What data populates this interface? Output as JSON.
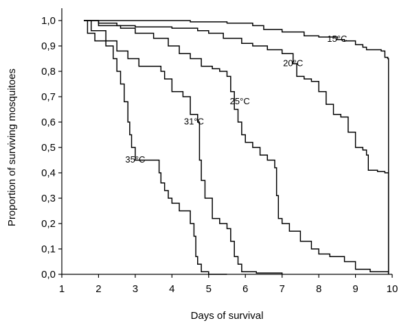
{
  "chart_data": {
    "type": "line",
    "step": true,
    "xlabel": "Days of survival",
    "ylabel": "Proportion of surviving mosquitoes",
    "xlim": [
      1,
      10
    ],
    "ylim": [
      0,
      1
    ],
    "x_ticks": [
      1,
      2,
      3,
      4,
      5,
      6,
      7,
      8,
      9,
      10
    ],
    "x_tick_labels": [
      "1",
      "2",
      "3",
      "4",
      "5",
      "6",
      "7",
      "8",
      "9",
      "10"
    ],
    "y_ticks": [
      0,
      0.1,
      0.2,
      0.3,
      0.4,
      0.5,
      0.6,
      0.7,
      0.8,
      0.9,
      1.0
    ],
    "y_tick_labels": [
      "0,0",
      "0,1",
      "0,2",
      "0,3",
      "0,4",
      "0,5",
      "0,6",
      "0,7",
      "0,8",
      "0,9",
      "1,0"
    ],
    "grid": false,
    "series": [
      {
        "name": "15°C",
        "color": "#000000",
        "points": [
          [
            1.6,
            1.0
          ],
          [
            3.0,
            1.0
          ],
          [
            4.5,
            0.995
          ],
          [
            5.5,
            0.99
          ],
          [
            6.2,
            0.98
          ],
          [
            6.5,
            0.965
          ],
          [
            7.0,
            0.955
          ],
          [
            7.6,
            0.94
          ],
          [
            8.0,
            0.935
          ],
          [
            8.5,
            0.925
          ],
          [
            8.7,
            0.92
          ],
          [
            9.0,
            0.905
          ],
          [
            9.2,
            0.895
          ],
          [
            9.3,
            0.885
          ],
          [
            9.6,
            0.885
          ],
          [
            9.7,
            0.88
          ],
          [
            9.8,
            0.855
          ],
          [
            9.88,
            0.85
          ],
          [
            9.9,
            0.0
          ]
        ]
      },
      {
        "name": "20°C",
        "color": "#000000",
        "points": [
          [
            1.6,
            1.0
          ],
          [
            2.0,
            0.99
          ],
          [
            2.5,
            0.98
          ],
          [
            3.0,
            0.975
          ],
          [
            4.0,
            0.97
          ],
          [
            4.7,
            0.96
          ],
          [
            5.0,
            0.95
          ],
          [
            5.4,
            0.93
          ],
          [
            5.9,
            0.91
          ],
          [
            6.2,
            0.9
          ],
          [
            6.6,
            0.885
          ],
          [
            7.0,
            0.87
          ],
          [
            7.3,
            0.83
          ],
          [
            7.4,
            0.78
          ],
          [
            7.6,
            0.77
          ],
          [
            7.8,
            0.76
          ],
          [
            8.0,
            0.72
          ],
          [
            8.2,
            0.67
          ],
          [
            8.4,
            0.63
          ],
          [
            8.6,
            0.62
          ],
          [
            8.8,
            0.56
          ],
          [
            9.0,
            0.5
          ],
          [
            9.2,
            0.49
          ],
          [
            9.3,
            0.47
          ],
          [
            9.35,
            0.41
          ],
          [
            9.6,
            0.405
          ],
          [
            9.8,
            0.4
          ],
          [
            9.9,
            0.0
          ]
        ]
      },
      {
        "name": "25°C",
        "color": "#000000",
        "points": [
          [
            1.6,
            1.0
          ],
          [
            2.0,
            0.98
          ],
          [
            2.6,
            0.97
          ],
          [
            3.0,
            0.95
          ],
          [
            3.5,
            0.93
          ],
          [
            3.9,
            0.9
          ],
          [
            4.2,
            0.87
          ],
          [
            4.5,
            0.85
          ],
          [
            4.8,
            0.82
          ],
          [
            5.1,
            0.81
          ],
          [
            5.3,
            0.8
          ],
          [
            5.5,
            0.78
          ],
          [
            5.6,
            0.72
          ],
          [
            5.7,
            0.65
          ],
          [
            5.8,
            0.6
          ],
          [
            5.9,
            0.55
          ],
          [
            6.0,
            0.52
          ],
          [
            6.2,
            0.5
          ],
          [
            6.4,
            0.47
          ],
          [
            6.6,
            0.45
          ],
          [
            6.8,
            0.42
          ],
          [
            6.85,
            0.31
          ],
          [
            6.9,
            0.22
          ],
          [
            7.0,
            0.2
          ],
          [
            7.2,
            0.17
          ],
          [
            7.5,
            0.13
          ],
          [
            7.8,
            0.1
          ],
          [
            8.0,
            0.08
          ],
          [
            8.3,
            0.07
          ],
          [
            8.7,
            0.05
          ],
          [
            9.0,
            0.02
          ],
          [
            9.4,
            0.01
          ],
          [
            9.9,
            0.0
          ]
        ]
      },
      {
        "name": "31°C",
        "color": "#000000",
        "points": [
          [
            1.6,
            1.0
          ],
          [
            1.8,
            0.96
          ],
          [
            2.2,
            0.92
          ],
          [
            2.5,
            0.88
          ],
          [
            2.8,
            0.85
          ],
          [
            3.1,
            0.82
          ],
          [
            3.7,
            0.8
          ],
          [
            3.8,
            0.77
          ],
          [
            4.0,
            0.72
          ],
          [
            4.3,
            0.7
          ],
          [
            4.5,
            0.63
          ],
          [
            4.7,
            0.6
          ],
          [
            4.75,
            0.45
          ],
          [
            4.8,
            0.37
          ],
          [
            4.9,
            0.3
          ],
          [
            5.1,
            0.22
          ],
          [
            5.3,
            0.2
          ],
          [
            5.5,
            0.18
          ],
          [
            5.6,
            0.13
          ],
          [
            5.7,
            0.07
          ],
          [
            5.8,
            0.04
          ],
          [
            5.9,
            0.01
          ],
          [
            6.3,
            0.005
          ],
          [
            7.0,
            0.0
          ]
        ]
      },
      {
        "name": "35°C",
        "color": "#000000",
        "points": [
          [
            1.6,
            1.0
          ],
          [
            1.7,
            0.95
          ],
          [
            1.9,
            0.92
          ],
          [
            2.2,
            0.9
          ],
          [
            2.4,
            0.85
          ],
          [
            2.5,
            0.8
          ],
          [
            2.6,
            0.75
          ],
          [
            2.7,
            0.68
          ],
          [
            2.8,
            0.6
          ],
          [
            2.85,
            0.55
          ],
          [
            2.9,
            0.5
          ],
          [
            3.0,
            0.45
          ],
          [
            3.6,
            0.45
          ],
          [
            3.65,
            0.4
          ],
          [
            3.7,
            0.36
          ],
          [
            3.8,
            0.33
          ],
          [
            3.9,
            0.3
          ],
          [
            4.0,
            0.28
          ],
          [
            4.2,
            0.25
          ],
          [
            4.5,
            0.2
          ],
          [
            4.6,
            0.15
          ],
          [
            4.65,
            0.07
          ],
          [
            4.7,
            0.04
          ],
          [
            4.8,
            0.01
          ],
          [
            5.0,
            0.0
          ],
          [
            5.5,
            0.0
          ]
        ]
      }
    ],
    "series_label_anchors": [
      {
        "x": 8.5,
        "y": 0.925
      },
      {
        "x": 7.3,
        "y": 0.83
      },
      {
        "x": 5.85,
        "y": 0.68
      },
      {
        "x": 4.6,
        "y": 0.6
      },
      {
        "x": 3.0,
        "y": 0.45
      }
    ]
  }
}
